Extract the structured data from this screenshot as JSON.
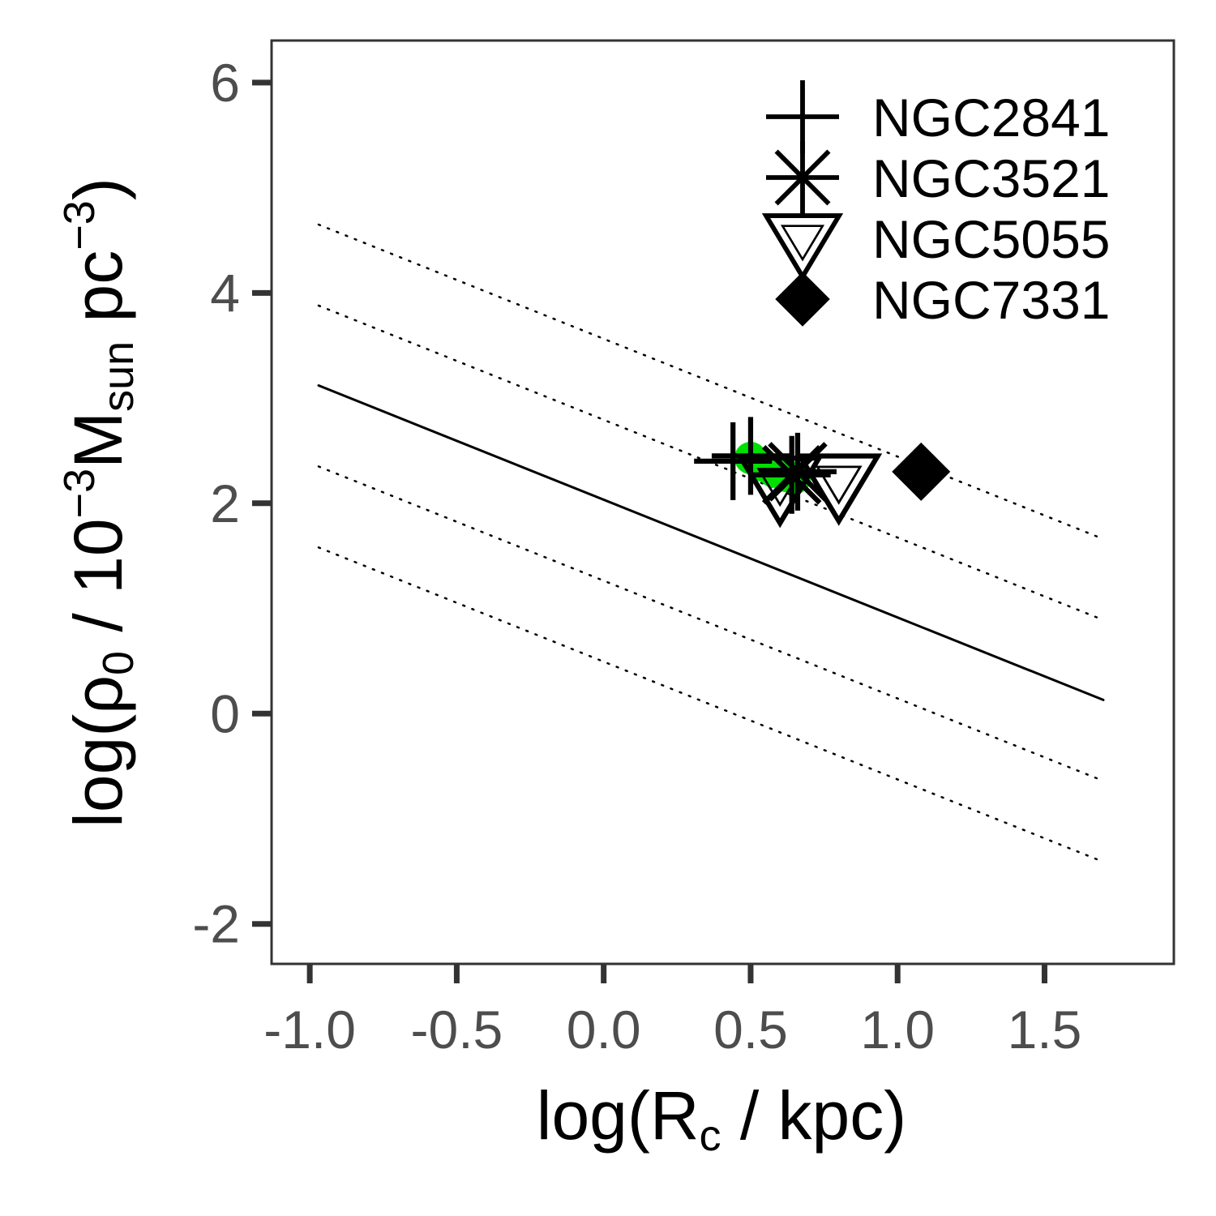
{
  "chart_data": {
    "type": "scatter",
    "title": "",
    "xlabel": {
      "pre": "log(R",
      "sub": "c",
      "post": " / kpc)"
    },
    "ylabel": {
      "pre": "log(ρ",
      "sub0": "0",
      "mid": " / 10",
      "sup1": "−3",
      "m": "M",
      "sub1": "sun",
      "pc": " pc",
      "sup2": "−3",
      "post": ")"
    },
    "xlim": [
      -1.13,
      1.94
    ],
    "ylim": [
      -2.38,
      6.4
    ],
    "xticks": [
      -1.0,
      -0.5,
      0.0,
      0.5,
      1.0,
      1.5
    ],
    "xtick_labels": [
      "-1.0",
      "-0.5",
      "0.0",
      "0.5",
      "1.0",
      "1.5"
    ],
    "yticks": [
      -2,
      0,
      2,
      4,
      6
    ],
    "ytick_labels": [
      "-2",
      "0",
      "2",
      "4",
      "6"
    ],
    "grid": false,
    "legend_position": "top-right",
    "lines": [
      {
        "style": "solid",
        "x": [
          -0.97,
          1.7
        ],
        "y": [
          3.12,
          0.13
        ]
      },
      {
        "style": "dotted",
        "x": [
          -0.97,
          1.7
        ],
        "y": [
          4.65,
          1.66
        ]
      },
      {
        "style": "dotted",
        "x": [
          -0.97,
          1.7
        ],
        "y": [
          3.88,
          0.89
        ]
      },
      {
        "style": "dotted",
        "x": [
          -0.97,
          1.7
        ],
        "y": [
          2.35,
          -0.64
        ]
      },
      {
        "style": "dotted",
        "x": [
          -0.97,
          1.7
        ],
        "y": [
          1.58,
          -1.41
        ]
      }
    ],
    "green_points": {
      "color": "#00e000",
      "x": [
        0.5,
        0.54,
        0.58,
        0.62,
        0.65
      ],
      "y": [
        2.43,
        2.36,
        2.3,
        2.26,
        2.24
      ]
    },
    "series": [
      {
        "name": "NGC2841",
        "marker": "plus",
        "x": [
          0.44,
          0.5
        ],
        "y": [
          2.4,
          2.45
        ]
      },
      {
        "name": "NGC3521",
        "marker": "asterisk",
        "x": [
          0.64,
          0.66
        ],
        "y": [
          2.27,
          2.3
        ]
      },
      {
        "name": "NGC5055",
        "marker": "triangle-down",
        "x": [
          0.6,
          0.8
        ],
        "y": [
          2.2,
          2.22
        ]
      },
      {
        "name": "NGC7331",
        "marker": "diamond",
        "x": [
          1.08
        ],
        "y": [
          2.3
        ]
      }
    ],
    "colors": {
      "marks": "#000000",
      "tick_labels": "#4d4d4d",
      "panel_border": "#333333"
    }
  }
}
